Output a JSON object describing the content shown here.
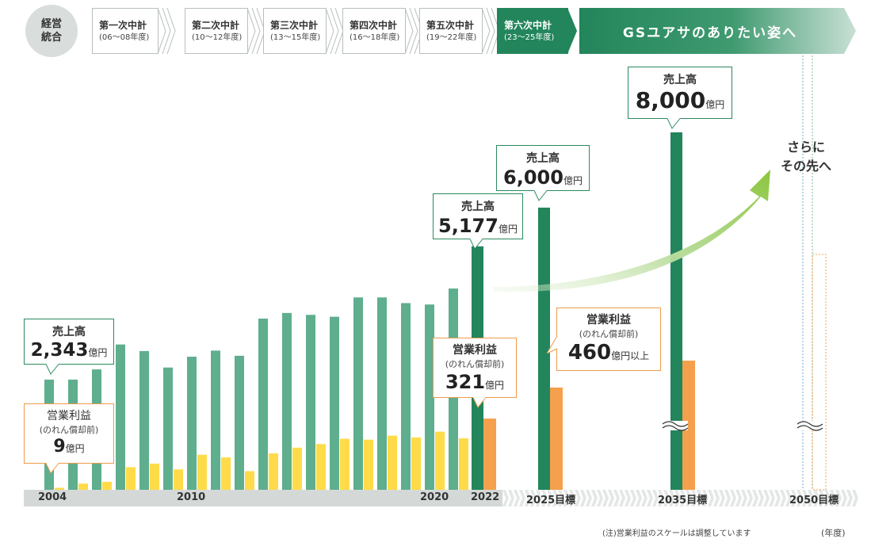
{
  "header": {
    "badge": [
      "経営",
      "統合"
    ],
    "phases": [
      {
        "title": "第一次中計",
        "period": "(06〜08年度)",
        "active": false
      },
      {
        "title": "第二次中計",
        "period": "(10〜12年度)",
        "active": false
      },
      {
        "title": "第三次中計",
        "period": "(13〜15年度)",
        "active": false
      },
      {
        "title": "第四次中計",
        "period": "(16〜18年度)",
        "active": false
      },
      {
        "title": "第五次中計",
        "period": "(19〜22年度)",
        "active": false
      },
      {
        "title": "第六次中計",
        "period": "(23〜25年度)",
        "active": true
      }
    ],
    "vision": "GSユアサのありたい姿へ"
  },
  "further": [
    "さらに",
    "その先へ"
  ],
  "note": "(注)営業利益のスケールは調整しています",
  "year_unit": "(年度)",
  "colors": {
    "sales_history": "#5fae8e",
    "sales_plan": "#23855b",
    "profit_history": "#ffdb4a",
    "profit_plan": "#f5a04d",
    "axis_band": "#d4d9d8"
  },
  "chart_data": {
    "type": "bar",
    "note": "営業利益のスケールは調整しています",
    "x": [
      "2004",
      "2005",
      "2006",
      "2007",
      "2008",
      "2009",
      "2010",
      "2011",
      "2012",
      "2013",
      "2014",
      "2015",
      "2016",
      "2017",
      "2018",
      "2019",
      "2020",
      "2021",
      "2022",
      "2025目標",
      "2035目標",
      "2050目標"
    ],
    "x_tick_labels": [
      "2004",
      "2010",
      "2020",
      "2022",
      "2025目標",
      "2035目標",
      "2050目標"
    ],
    "series": [
      {
        "name": "売上高",
        "unit": "億円",
        "values": [
          2343,
          2343,
          2560,
          3090,
          2950,
          2600,
          2830,
          2960,
          2850,
          3640,
          3760,
          3720,
          3680,
          4090,
          4090,
          3970,
          3940,
          4280,
          5177,
          6000,
          8000,
          null
        ]
      },
      {
        "name": "営業利益",
        "unit": "億円",
        "values": [
          9,
          28,
          36,
          102,
          118,
          92,
          158,
          146,
          84,
          164,
          190,
          206,
          230,
          226,
          244,
          236,
          262,
          232,
          321,
          460,
          580,
          null
        ]
      }
    ],
    "labels": [
      {
        "category": "2004",
        "series": "売上高",
        "value": "2,343",
        "unit": "億円"
      },
      {
        "category": "2004",
        "series": "営業利益(のれん償却前)",
        "value": "9",
        "unit": "億円"
      },
      {
        "category": "2022",
        "series": "売上高",
        "value": "5,177",
        "unit": "億円"
      },
      {
        "category": "2022",
        "series": "営業利益(のれん償却前)",
        "value": "321",
        "unit": "億円"
      },
      {
        "category": "2025目標",
        "series": "売上高",
        "value": "6,000",
        "unit": "億円"
      },
      {
        "category": "2025目標",
        "series": "営業利益(のれん償却前)",
        "value": "460",
        "unit": "億円以上"
      },
      {
        "category": "2035目標",
        "series": "売上高",
        "value": "8,000",
        "unit": "億円"
      }
    ],
    "ylim": [
      0,
      8000
    ],
    "grid": false,
    "legend": "none"
  },
  "callouts": [
    {
      "name": "sales-2004",
      "kind": "green",
      "title": "売上高",
      "value": "2,343",
      "unit": "億円"
    },
    {
      "name": "profit-2004",
      "kind": "orange",
      "title": "営業利益",
      "sub": "(のれん償却前)",
      "value": "9",
      "unit": "億円"
    },
    {
      "name": "sales-2022",
      "kind": "green",
      "title": "売上高",
      "value": "5,177",
      "unit": "億円"
    },
    {
      "name": "profit-2022",
      "kind": "orange",
      "title": "営業利益",
      "sub": "(のれん償却前)",
      "value": "321",
      "unit": "億円"
    },
    {
      "name": "sales-2025",
      "kind": "green",
      "title": "売上高",
      "value": "6,000",
      "unit": "億円"
    },
    {
      "name": "profit-2025",
      "kind": "orange",
      "title": "営業利益",
      "sub": "(のれん償却前)",
      "value": "460",
      "unit": "億円以上"
    },
    {
      "name": "sales-2035",
      "kind": "green",
      "title": "売上高",
      "value": "8,000",
      "unit": "億円"
    }
  ]
}
